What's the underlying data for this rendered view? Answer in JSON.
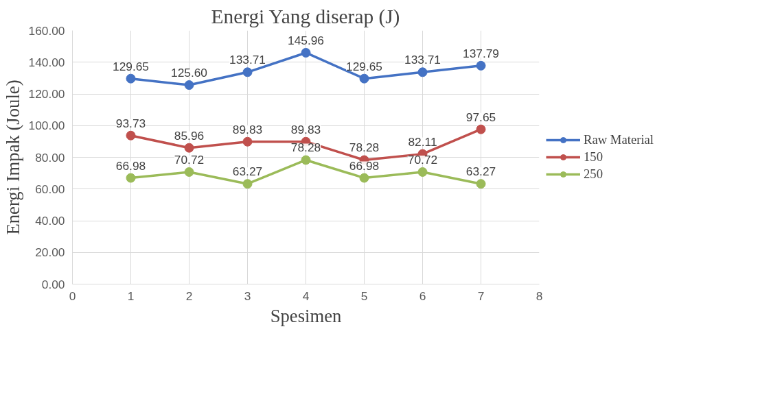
{
  "chart_data": {
    "type": "line",
    "title": "Energi Yang diserap (J)",
    "xlabel": "Spesimen",
    "ylabel": "Energi Impak (Joule)",
    "x": [
      1,
      2,
      3,
      4,
      5,
      6,
      7
    ],
    "series": [
      {
        "name": "Raw Material",
        "color": "#4472c4",
        "values": [
          129.65,
          125.6,
          133.71,
          145.96,
          129.65,
          133.71,
          137.79
        ],
        "value_labels": [
          "129.65",
          "125.60",
          "133.71",
          "145.96",
          "129.65",
          "133.71",
          "137.79"
        ]
      },
      {
        "name": "150",
        "color": "#c0504d",
        "values": [
          93.73,
          85.96,
          89.83,
          89.83,
          78.28,
          82.11,
          97.65
        ],
        "value_labels": [
          "93.73",
          "85.96",
          "89.83",
          "89.83",
          "78.28",
          "82.11",
          "97.65"
        ]
      },
      {
        "name": "250",
        "color": "#9bbb59",
        "values": [
          66.98,
          70.72,
          63.27,
          78.28,
          66.98,
          70.72,
          63.27
        ],
        "value_labels": [
          "66.98",
          "70.72",
          "63.27",
          "78.28",
          "66.98",
          "70.72",
          "63.27"
        ]
      }
    ],
    "xlim": [
      0,
      8
    ],
    "xticks": [
      0,
      1,
      2,
      3,
      4,
      5,
      6,
      7,
      8
    ],
    "ylim": [
      0,
      160
    ],
    "yticks": [
      {
        "value": 0,
        "label": "0.00"
      },
      {
        "value": 20,
        "label": "20.00"
      },
      {
        "value": 40,
        "label": "40.00"
      },
      {
        "value": 60,
        "label": "60.00"
      },
      {
        "value": 80,
        "label": "80.00"
      },
      {
        "value": 100,
        "label": "100.00"
      },
      {
        "value": 120,
        "label": "120.00"
      },
      {
        "value": 140,
        "label": "140.00"
      },
      {
        "value": 160,
        "label": "160.00"
      }
    ],
    "grid": true,
    "legend": "right",
    "marker": "circle",
    "line_style": "solid"
  }
}
